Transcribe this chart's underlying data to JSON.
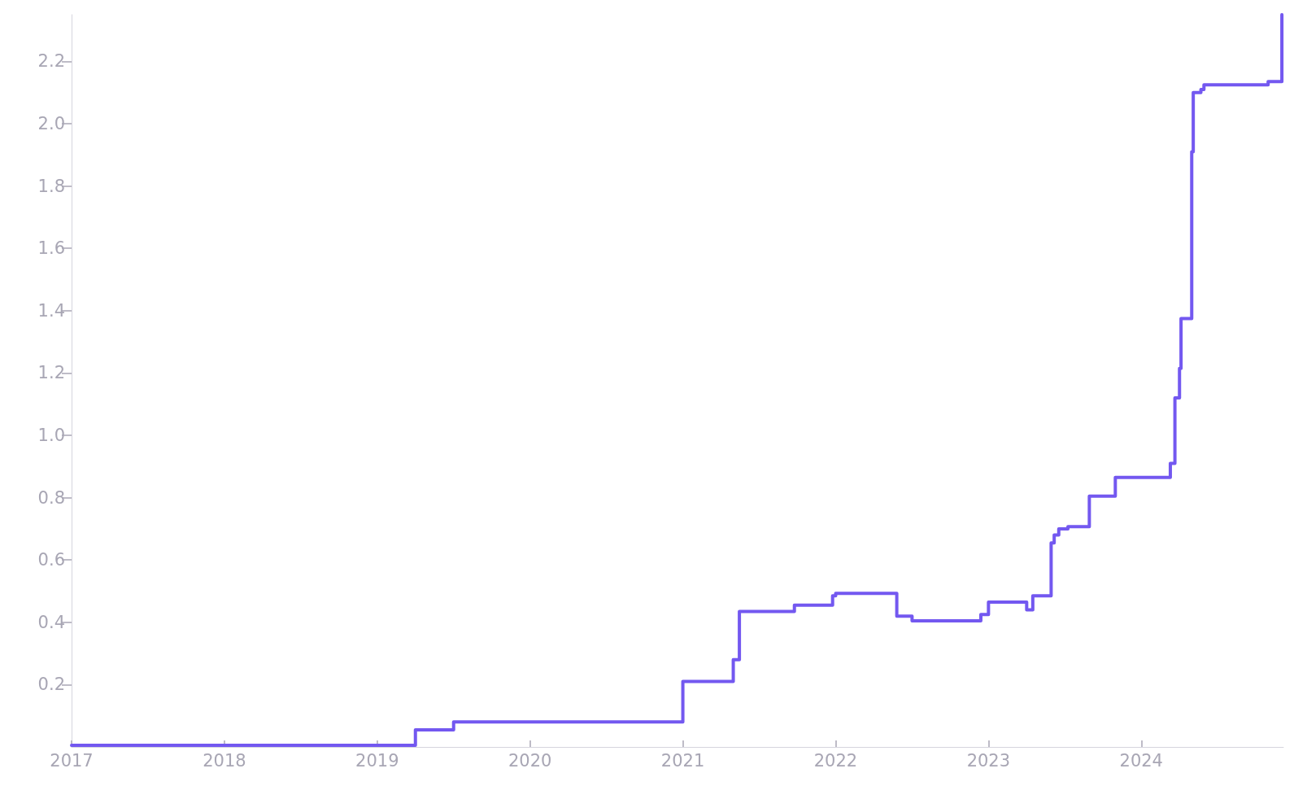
{
  "chart_data": {
    "type": "step",
    "color": "#7358f0",
    "grid": false,
    "marker": "none",
    "line_style": "solid",
    "x": [
      2017,
      2019.25,
      2019.5,
      2021.0,
      2021.33,
      2021.37,
      2021.73,
      2021.98,
      2022.0,
      2022.4,
      2022.5,
      2022.95,
      2023.0,
      2023.25,
      2023.29,
      2023.41,
      2023.43,
      2023.46,
      2023.52,
      2023.66,
      2023.83,
      2024.19,
      2024.22,
      2024.25,
      2024.26,
      2024.33,
      2024.34,
      2024.39,
      2024.41,
      2024.83,
      2024.92
    ],
    "values": [
      0.005,
      0.055,
      0.08,
      0.21,
      0.28,
      0.435,
      0.455,
      0.485,
      0.493,
      0.42,
      0.405,
      0.425,
      0.465,
      0.44,
      0.485,
      0.655,
      0.68,
      0.7,
      0.707,
      0.805,
      0.865,
      0.91,
      1.12,
      1.215,
      1.375,
      1.91,
      2.1,
      2.11,
      2.125,
      2.135,
      2.35
    ],
    "xlim": [
      2017,
      2024.93
    ],
    "xticks": [
      2017,
      2018,
      2019,
      2020,
      2021,
      2022,
      2023,
      2024
    ],
    "ylim": [
      0,
      2.35
    ],
    "yticks": [
      0.2,
      0.4,
      0.6,
      0.8,
      {
        "value": 1,
        "label": "1.0"
      },
      1.2,
      1.4,
      1.6,
      1.8,
      {
        "value": 2,
        "label": "2.0"
      },
      2.2
    ]
  }
}
